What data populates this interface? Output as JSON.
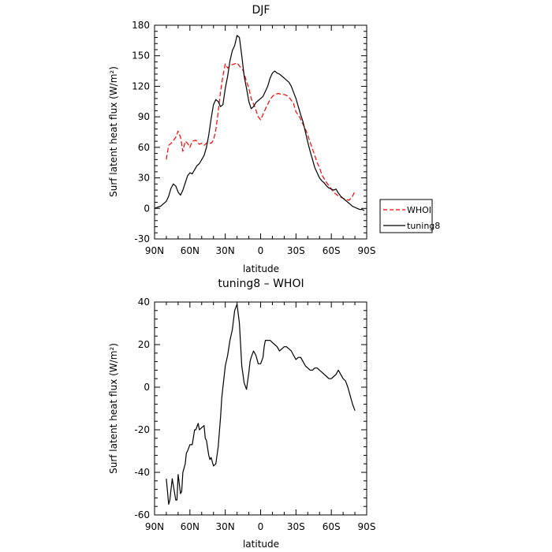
{
  "chart_data": [
    {
      "type": "line",
      "title": "DJF",
      "xlabel": "latitude",
      "ylabel": "Surf latent heat flux (W/m²)",
      "xlim": [
        90,
        -90
      ],
      "ylim": [
        -30,
        180
      ],
      "yticks": [
        -30,
        0,
        30,
        60,
        90,
        120,
        150,
        180
      ],
      "xticks": [
        {
          "value": 90,
          "label": "90N"
        },
        {
          "value": 60,
          "label": "60N"
        },
        {
          "value": 30,
          "label": "30N"
        },
        {
          "value": 0,
          "label": "0"
        },
        {
          "value": -30,
          "label": "30S"
        },
        {
          "value": -60,
          "label": "60S"
        },
        {
          "value": -90,
          "label": "90S"
        }
      ],
      "grid": false,
      "legend_position": "outside-right",
      "series": [
        {
          "name": "WHOI",
          "color": "#ff0000",
          "dash": "dashed",
          "x": [
            80,
            78,
            75,
            72,
            70,
            68,
            66,
            64,
            62,
            60,
            58,
            55,
            52,
            50,
            48,
            45,
            42,
            40,
            38,
            36,
            34,
            32,
            30,
            28,
            25,
            22,
            20,
            18,
            15,
            12,
            10,
            8,
            5,
            2,
            0,
            -3,
            -5,
            -8,
            -10,
            -12,
            -15,
            -18,
            -20,
            -22,
            -25,
            -28,
            -30,
            -33,
            -35,
            -38,
            -40,
            -42,
            -45,
            -48,
            -50,
            -52,
            -55,
            -58,
            -60,
            -62,
            -65,
            -68,
            -70,
            -72,
            -75,
            -78,
            -80
          ],
          "y": [
            48,
            62,
            65,
            70,
            76,
            70,
            56,
            66,
            64,
            60,
            66,
            67,
            63,
            64,
            62,
            65,
            64,
            67,
            77,
            95,
            115,
            130,
            142,
            138,
            141,
            142,
            143,
            140,
            136,
            125,
            118,
            108,
            100,
            90,
            87,
            95,
            100,
            107,
            110,
            112,
            113,
            112,
            112,
            111,
            108,
            103,
            95,
            90,
            85,
            78,
            72,
            65,
            55,
            45,
            40,
            33,
            27,
            22,
            19,
            16,
            13,
            11,
            10,
            9,
            8,
            12,
            17
          ]
        },
        {
          "name": "tuning8",
          "color": "#000000",
          "dash": "solid",
          "x": [
            90,
            88,
            85,
            83,
            80,
            78,
            76,
            74,
            72,
            70,
            68,
            66,
            64,
            62,
            60,
            58,
            56,
            54,
            52,
            50,
            48,
            46,
            44,
            42,
            40,
            38,
            36,
            34,
            32,
            30,
            28,
            26,
            24,
            22,
            20,
            18,
            16,
            14,
            12,
            10,
            8,
            6,
            4,
            2,
            0,
            -2,
            -4,
            -6,
            -8,
            -10,
            -12,
            -14,
            -16,
            -18,
            -20,
            -22,
            -24,
            -26,
            -28,
            -30,
            -32,
            -34,
            -36,
            -38,
            -40,
            -42,
            -44,
            -46,
            -48,
            -50,
            -52,
            -54,
            -56,
            -58,
            -60,
            -62,
            -64,
            -66,
            -68,
            -70,
            -72,
            -74,
            -76,
            -78,
            -80,
            -82,
            -84,
            -86,
            -88
          ],
          "y": [
            0,
            1,
            2,
            4,
            7,
            12,
            20,
            24,
            22,
            16,
            13,
            18,
            25,
            32,
            35,
            34,
            38,
            42,
            44,
            48,
            52,
            60,
            72,
            88,
            102,
            107,
            105,
            100,
            102,
            118,
            130,
            145,
            155,
            160,
            170,
            168,
            150,
            130,
            118,
            105,
            98,
            100,
            104,
            106,
            108,
            110,
            115,
            120,
            128,
            133,
            135,
            133,
            132,
            130,
            128,
            126,
            124,
            120,
            114,
            108,
            100,
            92,
            85,
            75,
            65,
            56,
            48,
            40,
            35,
            30,
            27,
            25,
            22,
            20,
            19,
            18,
            19,
            15,
            12,
            10,
            8,
            6,
            4,
            2,
            1,
            0,
            -1,
            -1,
            -2
          ]
        }
      ]
    },
    {
      "type": "line",
      "title": "tuning8 – WHOI",
      "xlabel": "latitude",
      "ylabel": "Surf latent heat flux (W/m²)",
      "xlim": [
        90,
        -90
      ],
      "ylim": [
        -60,
        40
      ],
      "yticks": [
        -60,
        -40,
        -20,
        0,
        20,
        40
      ],
      "xticks": [
        {
          "value": 90,
          "label": "90N"
        },
        {
          "value": 60,
          "label": "60N"
        },
        {
          "value": 30,
          "label": "30N"
        },
        {
          "value": 0,
          "label": "0"
        },
        {
          "value": -30,
          "label": "30S"
        },
        {
          "value": -60,
          "label": "60S"
        },
        {
          "value": -90,
          "label": "90S"
        }
      ],
      "grid": false,
      "series": [
        {
          "name": "",
          "color": "#000000",
          "dash": "solid",
          "x": [
            80,
            78,
            77,
            75,
            72,
            71,
            70,
            68,
            67,
            66,
            64,
            63,
            62,
            60,
            58,
            56,
            55,
            53,
            52,
            50,
            48,
            47,
            46,
            44,
            43,
            42,
            40,
            38,
            36,
            34,
            33,
            32,
            30,
            28,
            26,
            24,
            22,
            20,
            18,
            17,
            16,
            14,
            12,
            10,
            9,
            8,
            6,
            4,
            2,
            0,
            -2,
            -3,
            -4,
            -6,
            -8,
            -10,
            -12,
            -14,
            -16,
            -18,
            -20,
            -22,
            -24,
            -26,
            -28,
            -30,
            -32,
            -34,
            -36,
            -38,
            -40,
            -42,
            -44,
            -46,
            -48,
            -50,
            -52,
            -54,
            -56,
            -58,
            -60,
            -62,
            -64,
            -66,
            -68,
            -70,
            -72,
            -74,
            -76,
            -78,
            -80
          ],
          "y": [
            -43,
            -55,
            -53,
            -43,
            -53,
            -53,
            -41,
            -50,
            -49,
            -40,
            -36,
            -31,
            -30,
            -27,
            -27,
            -20,
            -20,
            -17,
            -20,
            -19,
            -18,
            -24,
            -25,
            -32,
            -34,
            -33,
            -37,
            -36,
            -28,
            -14,
            -5,
            0,
            10,
            15,
            22,
            27,
            36,
            39,
            30,
            20,
            10,
            2,
            -1,
            7,
            12,
            14,
            17,
            15,
            11,
            11,
            14,
            19,
            22,
            22,
            22,
            21,
            20,
            19,
            17,
            18,
            19,
            19,
            18,
            17,
            15,
            13,
            14,
            14,
            12,
            10,
            9,
            8,
            8,
            9,
            9,
            8,
            7,
            6,
            5,
            4,
            4,
            5,
            6,
            8,
            6,
            4,
            3,
            0,
            -4,
            -8,
            -11
          ]
        }
      ]
    }
  ]
}
